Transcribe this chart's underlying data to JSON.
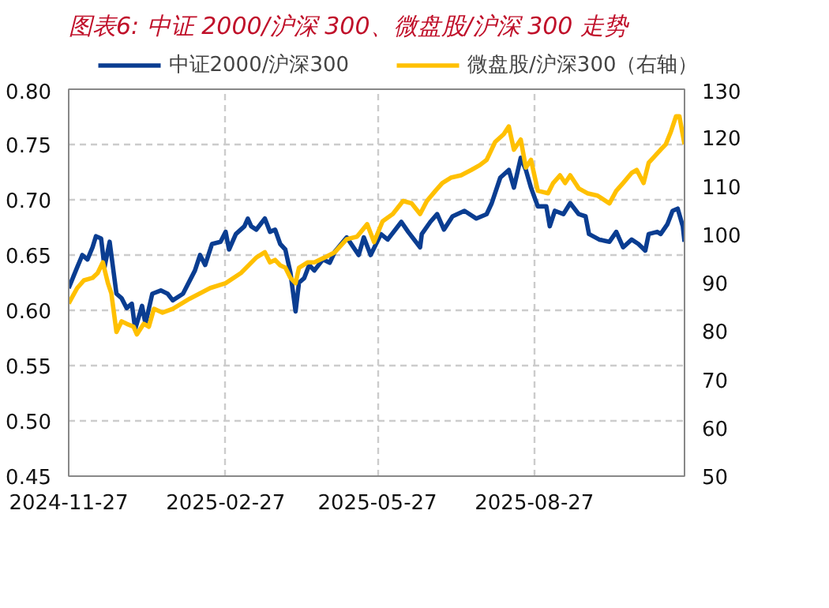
{
  "chart_data": {
    "type": "line",
    "title": "图表6:  中证 2000/沪深 300、微盘股/沪深 300 走势",
    "xlim": [
      "2024-11-27",
      "2025-11-23"
    ],
    "xticks": [
      "2024-11-27",
      "2025-02-27",
      "2025-05-27",
      "2025-08-27"
    ],
    "ylim": [
      0.45,
      0.8
    ],
    "yticks": [
      0.45,
      {
        "value": 0.5,
        "label": "0.50"
      },
      0.55,
      {
        "value": 0.6,
        "label": "0.60"
      },
      0.65,
      {
        "value": 0.7,
        "label": "0.70"
      },
      0.75,
      {
        "value": 0.8,
        "label": "0.80"
      }
    ],
    "y2lim": [
      50,
      130
    ],
    "y2ticks": [
      50,
      60,
      70,
      80,
      90,
      100,
      110,
      120,
      130
    ],
    "grid": true,
    "legend": "top",
    "series": [
      {
        "name": "中证2000/沪深300",
        "color": "#0a3d91",
        "x": [
          "2024-11-27",
          "2024-12-02",
          "2024-12-05",
          "2024-12-08",
          "2024-12-11",
          "2024-12-13",
          "2024-12-16",
          "2024-12-18",
          "2024-12-21",
          "2024-12-25",
          "2024-12-28",
          "2024-12-31",
          "2025-01-03",
          "2025-01-05",
          "2025-01-09",
          "2025-01-11",
          "2025-01-15",
          "2025-01-20",
          "2025-01-24",
          "2025-01-27",
          "2025-02-02",
          "2025-02-09",
          "2025-02-12",
          "2025-02-15",
          "2025-02-19",
          "2025-02-24",
          "2025-02-27",
          "2025-03-01",
          "2025-03-05",
          "2025-03-10",
          "2025-03-12",
          "2025-03-14",
          "2025-03-17",
          "2025-03-22",
          "2025-03-25",
          "2025-03-28",
          "2025-03-31",
          "2025-04-03",
          "2025-04-06",
          "2025-04-09",
          "2025-04-11",
          "2025-04-14",
          "2025-04-17",
          "2025-04-20",
          "2025-04-25",
          "2025-04-29",
          "2025-05-02",
          "2025-05-09",
          "2025-05-16",
          "2025-05-19",
          "2025-05-23",
          "2025-05-29",
          "2025-06-02",
          "2025-06-10",
          "2025-06-14",
          "2025-06-21",
          "2025-06-22",
          "2025-06-27",
          "2025-07-01",
          "2025-07-05",
          "2025-07-10",
          "2025-07-17",
          "2025-07-24",
          "2025-07-30",
          "2025-08-02",
          "2025-08-07",
          "2025-08-12",
          "2025-08-15",
          "2025-08-19",
          "2025-08-22",
          "2025-08-25",
          "2025-08-29",
          "2025-09-03",
          "2025-09-05",
          "2025-09-08",
          "2025-09-13",
          "2025-09-17",
          "2025-09-22",
          "2025-09-26",
          "2025-09-28",
          "2025-10-04",
          "2025-10-10",
          "2025-10-14",
          "2025-10-18",
          "2025-10-23",
          "2025-10-27",
          "2025-10-31",
          "2025-11-02",
          "2025-11-07",
          "2025-11-09",
          "2025-11-13",
          "2025-11-16",
          "2025-11-19",
          "2025-11-22",
          "2025-11-23"
        ],
        "values": [
          0.62,
          0.639,
          0.65,
          0.646,
          0.657,
          0.667,
          0.665,
          0.639,
          0.662,
          0.615,
          0.611,
          0.602,
          0.606,
          0.583,
          0.604,
          0.588,
          0.615,
          0.618,
          0.615,
          0.609,
          0.615,
          0.636,
          0.65,
          0.641,
          0.66,
          0.662,
          0.671,
          0.655,
          0.669,
          0.676,
          0.683,
          0.676,
          0.673,
          0.683,
          0.671,
          0.673,
          0.66,
          0.655,
          0.634,
          0.599,
          0.625,
          0.629,
          0.641,
          0.636,
          0.646,
          0.643,
          0.653,
          0.666,
          0.65,
          0.666,
          0.65,
          0.669,
          0.664,
          0.68,
          0.671,
          0.657,
          0.669,
          0.68,
          0.687,
          0.673,
          0.685,
          0.69,
          0.683,
          0.687,
          0.697,
          0.72,
          0.727,
          0.711,
          0.738,
          0.727,
          0.711,
          0.694,
          0.694,
          0.676,
          0.69,
          0.687,
          0.697,
          0.687,
          0.685,
          0.669,
          0.664,
          0.662,
          0.671,
          0.657,
          0.664,
          0.66,
          0.654,
          0.669,
          0.671,
          0.669,
          0.678,
          0.69,
          0.692,
          0.676,
          0.662
        ]
      },
      {
        "name": "微盘股/沪深300（右轴）",
        "color": "#ffc000",
        "axis": "y2",
        "x": [
          "2024-11-27",
          "2024-12-02",
          "2024-12-06",
          "2024-12-11",
          "2024-12-14",
          "2024-12-17",
          "2024-12-20",
          "2024-12-22",
          "2024-12-25",
          "2024-12-28",
          "2024-12-31",
          "2025-01-04",
          "2025-01-06",
          "2025-01-10",
          "2025-01-13",
          "2025-01-16",
          "2025-01-21",
          "2025-01-27",
          "2025-02-06",
          "2025-02-12",
          "2025-02-18",
          "2025-02-27",
          "2025-03-08",
          "2025-03-17",
          "2025-03-22",
          "2025-03-25",
          "2025-03-28",
          "2025-03-31",
          "2025-04-03",
          "2025-04-06",
          "2025-04-09",
          "2025-04-11",
          "2025-04-16",
          "2025-04-20",
          "2025-04-26",
          "2025-05-02",
          "2025-05-09",
          "2025-05-15",
          "2025-05-21",
          "2025-05-25",
          "2025-05-30",
          "2025-06-05",
          "2025-06-11",
          "2025-06-16",
          "2025-06-21",
          "2025-06-25",
          "2025-06-30",
          "2025-07-04",
          "2025-07-09",
          "2025-07-15",
          "2025-07-21",
          "2025-07-26",
          "2025-07-30",
          "2025-08-04",
          "2025-08-09",
          "2025-08-12",
          "2025-08-15",
          "2025-08-19",
          "2025-08-22",
          "2025-08-25",
          "2025-08-29",
          "2025-09-04",
          "2025-09-07",
          "2025-09-11",
          "2025-09-14",
          "2025-09-17",
          "2025-09-22",
          "2025-09-27",
          "2025-10-03",
          "2025-10-10",
          "2025-10-14",
          "2025-10-18",
          "2025-10-23",
          "2025-10-26",
          "2025-10-30",
          "2025-11-02",
          "2025-11-09",
          "2025-11-12",
          "2025-11-15",
          "2025-11-18",
          "2025-11-20",
          "2025-11-23"
        ],
        "values": [
          85.7,
          88.9,
          90.5,
          91.0,
          92.0,
          94.2,
          89.9,
          87.8,
          79.8,
          82.0,
          81.5,
          80.9,
          79.3,
          81.5,
          80.9,
          84.6,
          83.8,
          84.6,
          86.7,
          87.8,
          88.9,
          89.9,
          92.0,
          95.2,
          96.3,
          94.2,
          94.7,
          93.6,
          93.1,
          91.0,
          89.9,
          93.1,
          94.2,
          94.2,
          95.2,
          96.3,
          99.0,
          99.5,
          102.1,
          98.4,
          102.7,
          104.2,
          106.9,
          106.4,
          104.2,
          106.9,
          109.0,
          110.6,
          111.7,
          112.2,
          113.3,
          114.3,
          115.4,
          119.1,
          120.7,
          122.3,
          117.5,
          119.6,
          113.8,
          115.4,
          109.0,
          108.5,
          110.6,
          112.2,
          110.6,
          112.2,
          109.5,
          108.5,
          108.0,
          106.4,
          109.0,
          110.6,
          112.7,
          113.3,
          110.6,
          114.8,
          117.5,
          118.6,
          121.2,
          124.4,
          124.4,
          118.6
        ]
      }
    ]
  }
}
